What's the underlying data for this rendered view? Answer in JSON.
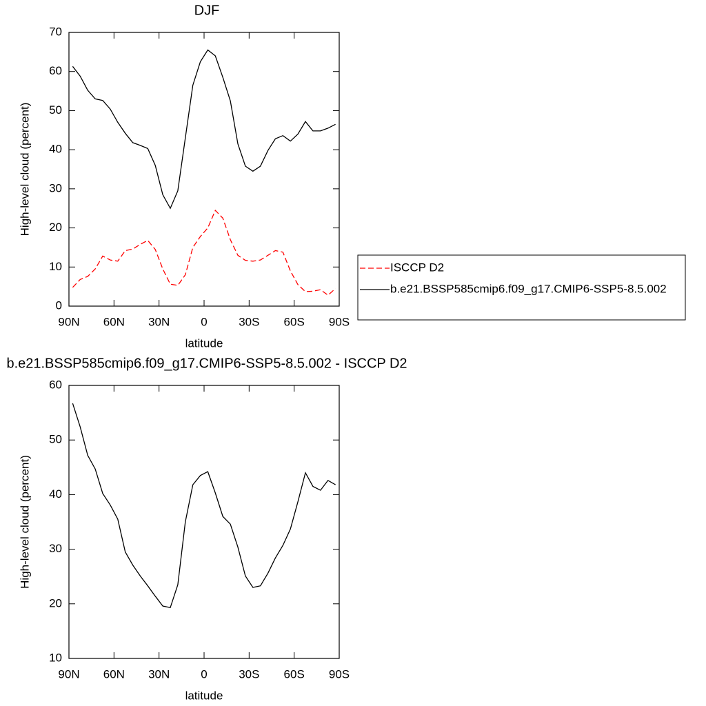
{
  "chart_data": [
    {
      "type": "line",
      "title": "DJF",
      "x_label": "latitude",
      "y_label": "High-level cloud (percent)",
      "x": [
        87.5,
        82.5,
        77.5,
        72.5,
        67.5,
        62.5,
        57.5,
        52.5,
        47.5,
        42.5,
        37.5,
        32.5,
        27.5,
        22.5,
        17.5,
        12.5,
        7.5,
        2.5,
        -2.5,
        -7.5,
        -12.5,
        -17.5,
        -22.5,
        -27.5,
        -32.5,
        -37.5,
        -42.5,
        -47.5,
        -52.5,
        -57.5,
        -62.5,
        -67.5,
        -72.5,
        -77.5,
        -82.5,
        -87.5
      ],
      "series": [
        {
          "name": "ISCCP D2",
          "color": "#ff0000",
          "dashed": true,
          "values": [
            4.8,
            6.8,
            7.6,
            9.5,
            12.8,
            11.8,
            11.5,
            14.2,
            14.6,
            15.8,
            16.8,
            14.5,
            9.5,
            5.6,
            5.3,
            8,
            15,
            17.8,
            20,
            24.5,
            22.5,
            17,
            13,
            11.7,
            11.5,
            11.8,
            13,
            14.2,
            13.8,
            9,
            5.5,
            3.7,
            3.8,
            4.2,
            2.8,
            4.5
          ]
        },
        {
          "name": "b.e21.BSSP585cmip6.f09_g17.CMIP6-SSP5-8.5.002",
          "color": "#000000",
          "dashed": false,
          "values": [
            61.3,
            58.8,
            55.2,
            53.0,
            52.6,
            50.4,
            47.0,
            44.2,
            41.8,
            41.1,
            40.3,
            36,
            28.5,
            25.0,
            29.5,
            43,
            56.5,
            62.5,
            65.5,
            64,
            58.5,
            52.5,
            41.5,
            35.8,
            34.5,
            35.8,
            39.8,
            42.8,
            43.6,
            42.2,
            44,
            47.2,
            44.8,
            44.8,
            45.5,
            46.5
          ]
        }
      ],
      "xlim": [
        90,
        -90
      ],
      "xticks": [
        {
          "value": 90,
          "label": "90N"
        },
        {
          "value": 60,
          "label": "60N"
        },
        {
          "value": 30,
          "label": "30N"
        },
        0,
        {
          "value": -30,
          "label": "30S"
        },
        {
          "value": -60,
          "label": "60S"
        },
        {
          "value": -90,
          "label": "90S"
        }
      ],
      "ylim": [
        0,
        70
      ],
      "yticks": [
        0,
        10,
        20,
        30,
        40,
        50,
        60,
        70
      ],
      "legend": "outside-right"
    },
    {
      "type": "line",
      "title": "b.e21.BSSP585cmip6.f09_g17.CMIP6-SSP5-8.5.002 - ISCCP D2",
      "x_label": "latitude",
      "y_label": "High-level cloud (percent)",
      "x": [
        87.5,
        82.5,
        77.5,
        72.5,
        67.5,
        62.5,
        57.5,
        52.5,
        47.5,
        42.5,
        37.5,
        32.5,
        27.5,
        22.5,
        17.5,
        12.5,
        7.5,
        2.5,
        -2.5,
        -7.5,
        -12.5,
        -17.5,
        -22.5,
        -27.5,
        -32.5,
        -37.5,
        -42.5,
        -47.5,
        -52.5,
        -57.5,
        -62.5,
        -67.5,
        -72.5,
        -77.5,
        -82.5,
        -87.5
      ],
      "series": [
        {
          "color": "#000000",
          "dashed": false,
          "values": [
            56.7,
            52.4,
            47.2,
            44.7,
            40.2,
            38.1,
            35.5,
            29.5,
            27.1,
            25.1,
            23.3,
            21.4,
            19.6,
            19.3,
            23.5,
            35,
            41.8,
            43.5,
            44.2,
            40.3,
            36,
            34.6,
            30.4,
            25.1,
            23,
            23.3,
            25.6,
            28.4,
            30.7,
            33.7,
            38.7,
            44,
            41.5,
            40.8,
            42.6,
            41.8
          ]
        }
      ],
      "xlim": [
        90,
        -90
      ],
      "xticks": [
        {
          "value": 90,
          "label": "90N"
        },
        {
          "value": 60,
          "label": "60N"
        },
        {
          "value": 30,
          "label": "30N"
        },
        0,
        {
          "value": -30,
          "label": "30S"
        },
        {
          "value": -60,
          "label": "60S"
        },
        {
          "value": -90,
          "label": "90S"
        }
      ],
      "ylim": [
        10,
        60
      ],
      "yticks": [
        10,
        20,
        30,
        40,
        50,
        60
      ]
    }
  ]
}
